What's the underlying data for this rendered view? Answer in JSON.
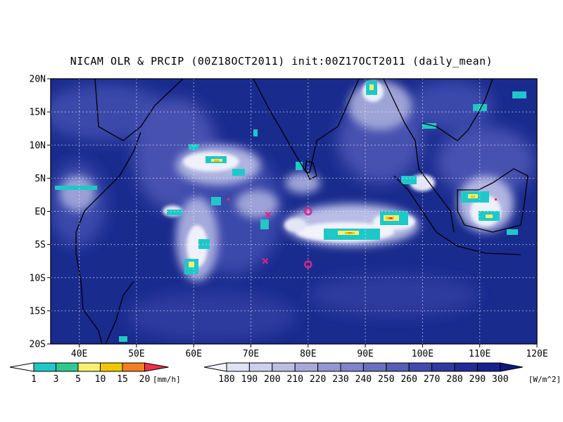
{
  "title": "NICAM OLR & PRCIP (00Z18OCT2011) init:00Z17OCT2011 (daily_mean)",
  "colors": {
    "ocean_base": "#1a2b8e",
    "ocean_mid": "#3845a8",
    "cloud_light": "#b8bde6",
    "cloud_white": "#f2f3fb",
    "precip_cyan": "#1ec8c8",
    "precip_green": "#30c890",
    "precip_yellow": "#f8f070",
    "precip_gold": "#f0c800",
    "precip_orange": "#f08020",
    "precip_red": "#f03048",
    "marker_magenta": "#e0208a"
  },
  "map": {
    "lon_range": [
      35,
      120
    ],
    "lat_range": [
      -20,
      20
    ],
    "lat_labels": [
      "20N",
      "15N",
      "10N",
      "5N",
      "EQ",
      "5S",
      "10S",
      "15S",
      "20S"
    ],
    "lon_labels": [
      "40E",
      "50E",
      "60E",
      "70E",
      "80E",
      "90E",
      "100E",
      "110E",
      "120E"
    ],
    "lat_values": [
      20,
      15,
      10,
      5,
      0,
      -5,
      -10,
      -15,
      -20
    ],
    "lon_values": [
      40,
      50,
      60,
      70,
      80,
      90,
      100,
      110,
      120
    ],
    "grid_style": "dotted"
  },
  "markers": [
    {
      "type": "circle",
      "lon": 80,
      "lat": 0
    },
    {
      "type": "circle",
      "lon": 80,
      "lat": -8
    },
    {
      "type": "cross",
      "lon": 73,
      "lat": -0.5
    },
    {
      "type": "cross",
      "lon": 72.5,
      "lat": -7.5
    }
  ],
  "precip_legend": {
    "labels": [
      "1",
      "3",
      "5",
      "10",
      "15",
      "20"
    ],
    "unit": "[mm/h]",
    "colors": [
      "#1ec8c8",
      "#30c890",
      "#f8f070",
      "#f0c800",
      "#f08020",
      "#f03048"
    ]
  },
  "olr_legend": {
    "labels": [
      "180",
      "190",
      "200",
      "210",
      "220",
      "230",
      "240",
      "250",
      "260",
      "270",
      "280",
      "290",
      "300"
    ],
    "unit": "[W/m^2]",
    "colors": [
      "#f4f4fc",
      "#e0e2f4",
      "#cdd0ec",
      "#babee4",
      "#a6aadb",
      "#9297d2",
      "#7e84c8",
      "#6a70be",
      "#565db4",
      "#434aaa",
      "#3138a0",
      "#232b96",
      "#18208c",
      "#101880"
    ]
  }
}
